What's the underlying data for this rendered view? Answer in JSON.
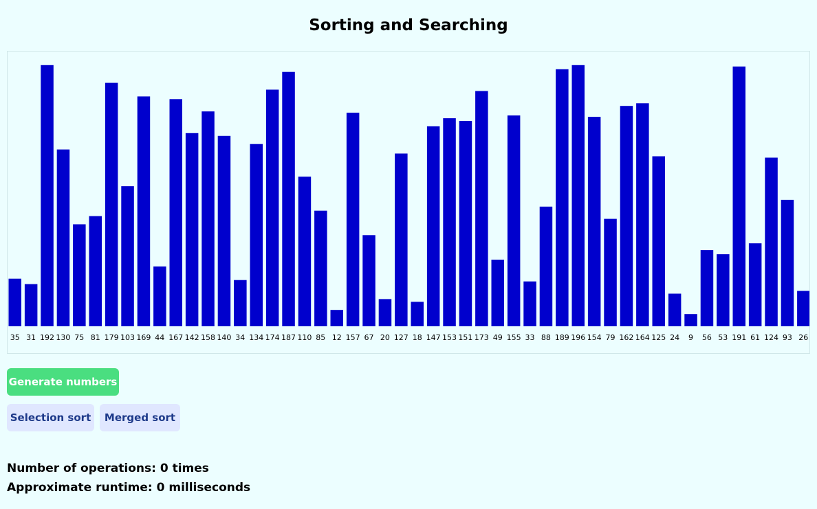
{
  "page": {
    "title": "Sorting and Searching"
  },
  "colors": {
    "background": "#ecfeff",
    "bar": "#0000cd",
    "generate_button": "#4ade80",
    "sort_button": "#e0e7ff",
    "sort_button_text": "#1e3a8a"
  },
  "controls": {
    "generate_label": "Generate numbers",
    "selection_sort_label": "Selection sort",
    "merged_sort_label": "Merged sort"
  },
  "stats": {
    "operations_text": "Number of operations: 0 times",
    "runtime_text": "Approximate runtime: 0 milliseconds"
  },
  "chart_data": {
    "type": "bar",
    "categories": [
      "35",
      "31",
      "192",
      "130",
      "75",
      "81",
      "179",
      "103",
      "169",
      "44",
      "167",
      "142",
      "158",
      "140",
      "34",
      "134",
      "174",
      "187",
      "110",
      "85",
      "12",
      "157",
      "67",
      "20",
      "127",
      "18",
      "147",
      "153",
      "151",
      "173",
      "49",
      "155",
      "33",
      "88",
      "189",
      "196",
      "154",
      "79",
      "162",
      "164",
      "125",
      "24",
      "9",
      "56",
      "53",
      "191",
      "61",
      "124",
      "93",
      "26"
    ],
    "values": [
      35,
      31,
      192,
      130,
      75,
      81,
      179,
      103,
      169,
      44,
      167,
      142,
      158,
      140,
      34,
      134,
      174,
      187,
      110,
      85,
      12,
      157,
      67,
      20,
      127,
      18,
      147,
      153,
      151,
      173,
      49,
      155,
      33,
      88,
      189,
      196,
      154,
      79,
      162,
      164,
      125,
      24,
      9,
      56,
      53,
      191,
      61,
      124,
      93,
      26
    ],
    "title": "",
    "xlabel": "",
    "ylabel": "",
    "grid": false,
    "legend": "none"
  }
}
